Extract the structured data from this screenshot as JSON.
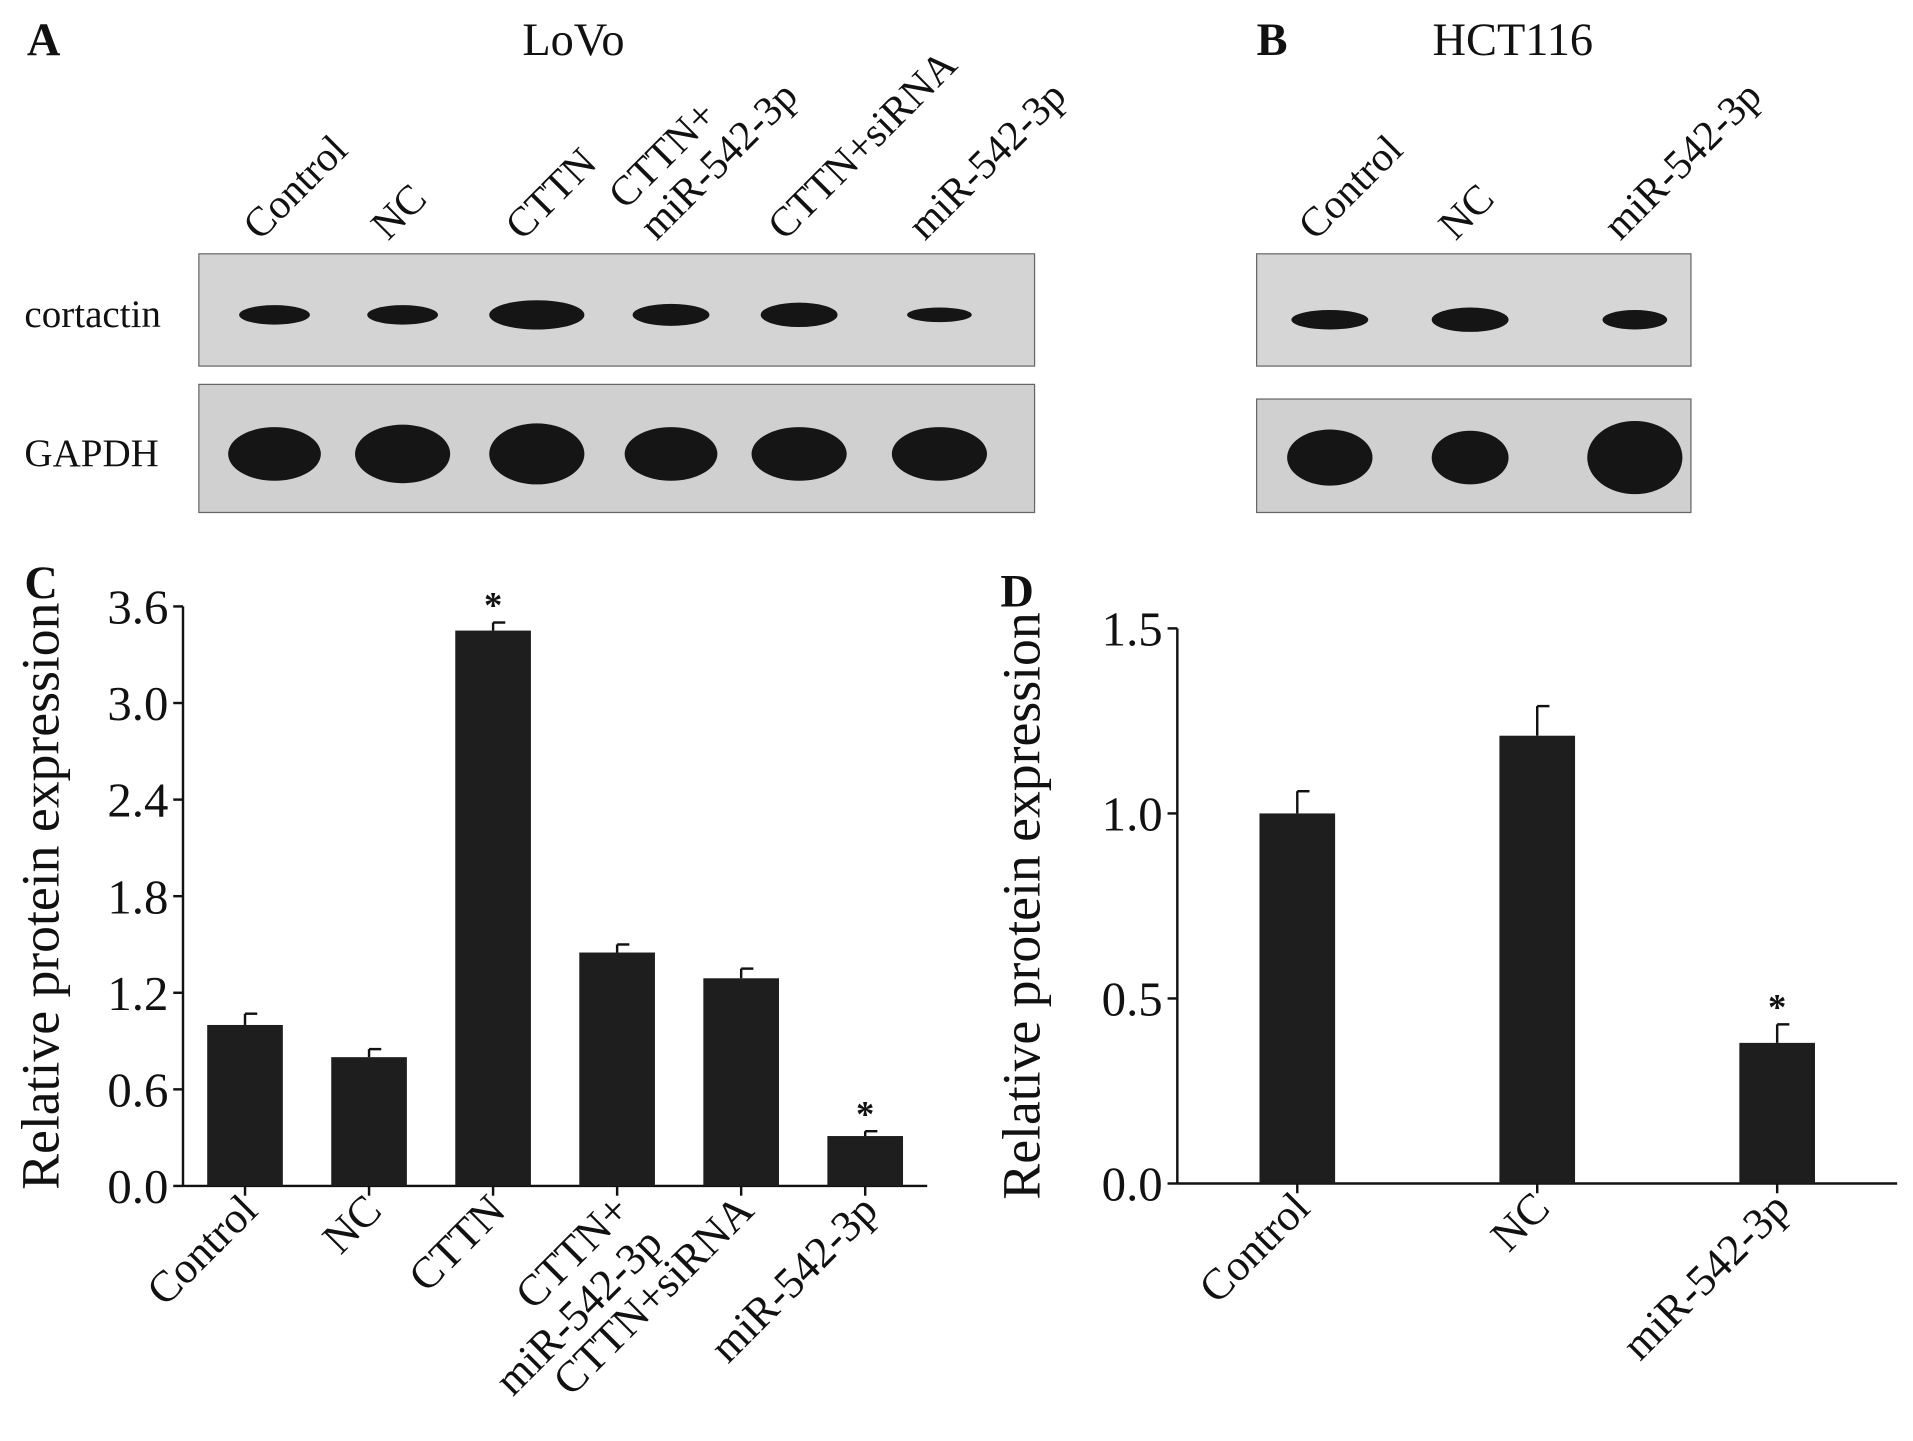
{
  "panels": [
    {
      "label": "A",
      "title": "LoVo",
      "lanes": [
        "Control",
        "NC",
        "CTTN",
        "CTTN+ miR-542-3p",
        "CTTN+siRNA",
        "miR-542-3p"
      ],
      "rows": [
        "cortactin",
        "GAPDH"
      ]
    },
    {
      "label": "B",
      "title": "HCT116",
      "lanes": [
        "Control",
        "NC",
        "miR-542-3p"
      ]
    }
  ],
  "chart_data": [
    {
      "type": "bar",
      "panel": "C",
      "y_label": "Relative protein expression",
      "categories": [
        "Control",
        "NC",
        "CTTN",
        "CTTN+ miR-542-3p",
        "CTTN+siRNA",
        "miR-542-3p"
      ],
      "values": [
        1.0,
        0.8,
        3.45,
        1.45,
        1.29,
        0.31
      ],
      "errors": [
        0.07,
        0.05,
        0.05,
        0.05,
        0.06,
        0.03
      ],
      "annotations": [
        {
          "index": 2,
          "text": "*"
        },
        {
          "index": 5,
          "text": "*"
        }
      ],
      "color": "#1e1e1e",
      "ylim": [
        0,
        3.6
      ],
      "yticks": [
        {
          "value": 0,
          "label": "0.0"
        },
        0.6,
        1.2,
        1.8,
        2.4,
        {
          "value": 3,
          "label": "3.0"
        },
        3.6
      ]
    },
    {
      "type": "bar",
      "panel": "D",
      "y_label": "Relative protein expression",
      "categories": [
        "Control",
        "NC",
        "miR-542-3p"
      ],
      "values": [
        1.0,
        1.21,
        0.38
      ],
      "errors": [
        0.06,
        0.08,
        0.05
      ],
      "annotations": [
        {
          "index": 2,
          "text": "*"
        }
      ],
      "color": "#1e1e1e",
      "ylim": [
        0,
        1.5
      ],
      "yticks": [
        {
          "value": 0,
          "label": "0.0"
        },
        0.5,
        {
          "value": 1,
          "label": "1.0"
        },
        1.5
      ]
    }
  ]
}
